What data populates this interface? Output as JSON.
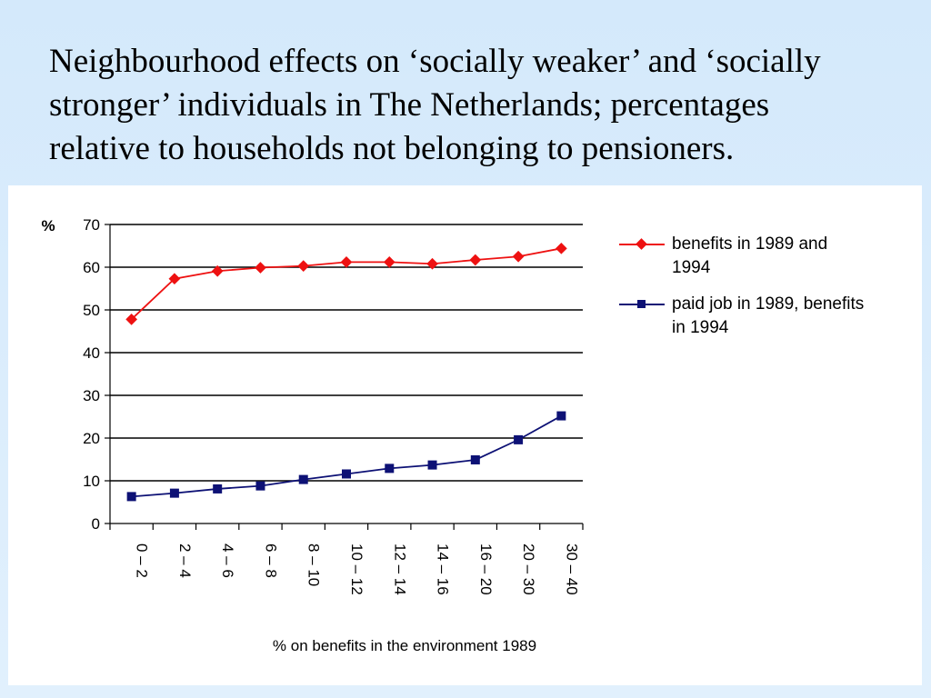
{
  "slide": {
    "title_lines": [
      "Neighbourhood effects on ‘socially weaker’ and ‘socially",
      "stronger’ individuals in The Netherlands; percentages",
      "relative to households not belonging to pensioners."
    ]
  },
  "chart_data": {
    "type": "line",
    "ylabel": "%",
    "xlabel": "% on benefits in the environment 1989",
    "ylim": [
      0,
      70
    ],
    "yticks": [
      0,
      10,
      20,
      30,
      40,
      50,
      60,
      70
    ],
    "grid": "horizontal",
    "legend_position": "right",
    "categories": [
      "0 – 2",
      "2 – 4",
      "4 – 6",
      "6 – 8",
      "8 – 10",
      "10 – 12",
      "12 – 14",
      "14 – 16",
      "16 – 20",
      "20 – 30",
      "30 – 40"
    ],
    "series": [
      {
        "name": "benefits in 1989 and 1994",
        "legend_lines": [
          "benefits in 1989 and",
          "1994"
        ],
        "color": "#ee1111",
        "marker": "diamond",
        "values": [
          47.8,
          57.3,
          59.1,
          59.9,
          60.3,
          61.2,
          61.2,
          60.8,
          61.7,
          62.5,
          64.4
        ]
      },
      {
        "name": "paid job in 1989, benefits in 1994",
        "legend_lines": [
          "paid job in 1989, benefits",
          "in 1994"
        ],
        "color": "#0d1175",
        "marker": "square",
        "values": [
          6.3,
          7.1,
          8.1,
          8.8,
          10.3,
          11.6,
          12.9,
          13.7,
          14.9,
          19.6,
          25.2
        ]
      }
    ]
  }
}
